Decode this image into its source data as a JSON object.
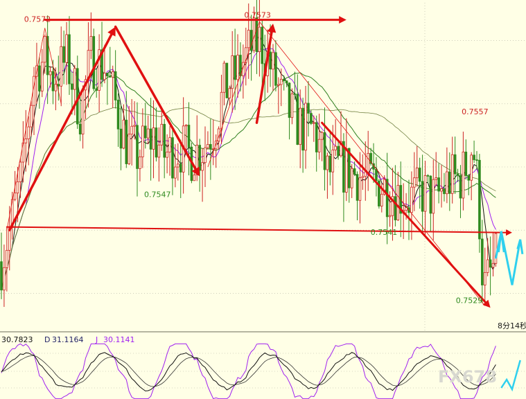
{
  "colors": {
    "background": "#ffffe6",
    "bull": "#cc2222",
    "bear": "#2f8a1f",
    "arrow": "#e01010",
    "projection": "#2fd0ee",
    "ma_black": "#111111",
    "ma_purple": "#a020f0",
    "ma_green": "#2f7f1f",
    "ma_olive": "#6f7f3f",
    "kdj_k": "#111111",
    "kdj_d": "#333333",
    "kdj_j": "#a020f0",
    "grid": "#b0b0a0",
    "label_high": "#cc2222",
    "label_low": "#2f8a1f",
    "watermark": "#d8d8d0"
  },
  "chart_data": {
    "type": "candlestick",
    "price_ylim": [
      0.7524,
      0.7576
    ],
    "annotations": [
      {
        "text": "0.7572",
        "kind": "high",
        "bar": 16,
        "price": 0.7572
      },
      {
        "text": "0.7573",
        "kind": "high",
        "bar": 95,
        "price": 0.7573
      },
      {
        "text": "0.7547",
        "kind": "low",
        "bar": 50,
        "price": 0.7547
      },
      {
        "text": "0.7541",
        "kind": "low",
        "bar": 141,
        "price": 0.7541
      },
      {
        "text": "0.7557",
        "kind": "high",
        "bar": 174,
        "price": 0.7557
      },
      {
        "text": "0.7529",
        "kind": "low",
        "bar": 178,
        "price": 0.7529
      }
    ],
    "timer_text": "8分14秒",
    "kdj": {
      "k_text": "30.7823",
      "d_label": "D",
      "d_value": "31.1164",
      "j_label": "J",
      "j_value": "30.1141"
    },
    "watermark": "FX678"
  }
}
